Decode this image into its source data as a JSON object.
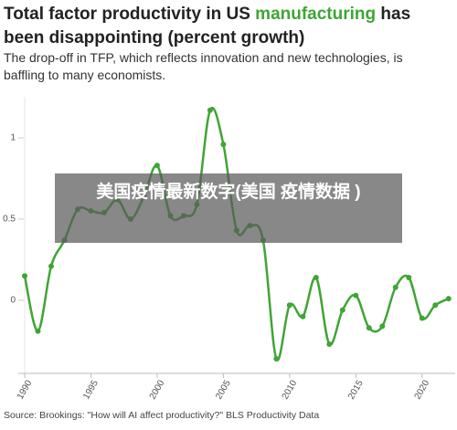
{
  "chart_data": {
    "type": "line",
    "title": [
      "Total factor productivity in US ",
      "manufacturing",
      " has been disappointing (percent growth)"
    ],
    "subtitle": "The drop-off in TFP, which reflects innovation and new technologies, is baffling to many economists.",
    "source": "Source: Brookings: \"How will AI affect productivity?\" BLS Productivity Data",
    "overlay_text": "美国疫情最新数字(美国 疫情数据 )",
    "color": "#3fa535",
    "highlight_color": "#3fa535",
    "x": [
      1990,
      1991,
      1992,
      1993,
      1994,
      1995,
      1996,
      1997,
      1998,
      1999,
      2000,
      2001,
      2002,
      2003,
      2004,
      2005,
      2006,
      2007,
      2008,
      2009,
      2010,
      2011,
      2012,
      2013,
      2014,
      2015,
      2016,
      2017,
      2018,
      2019,
      2020,
      2021,
      2022
    ],
    "values": [
      0.15,
      -0.19,
      0.21,
      0.37,
      0.56,
      0.55,
      0.54,
      0.62,
      0.5,
      0.64,
      0.83,
      0.52,
      0.52,
      0.59,
      1.17,
      0.96,
      0.43,
      0.46,
      0.37,
      -0.36,
      -0.03,
      -0.1,
      0.14,
      -0.27,
      -0.06,
      0.03,
      -0.17,
      -0.16,
      0.08,
      0.14,
      -0.11,
      -0.03,
      0.01
    ],
    "xlim": [
      1989.5,
      2022.5
    ],
    "xticks": [
      1990,
      1995,
      2000,
      2005,
      2010,
      2015,
      2020
    ],
    "ylim": [
      -0.45,
      1.25
    ],
    "yticks": [
      0,
      0.5,
      1
    ]
  }
}
